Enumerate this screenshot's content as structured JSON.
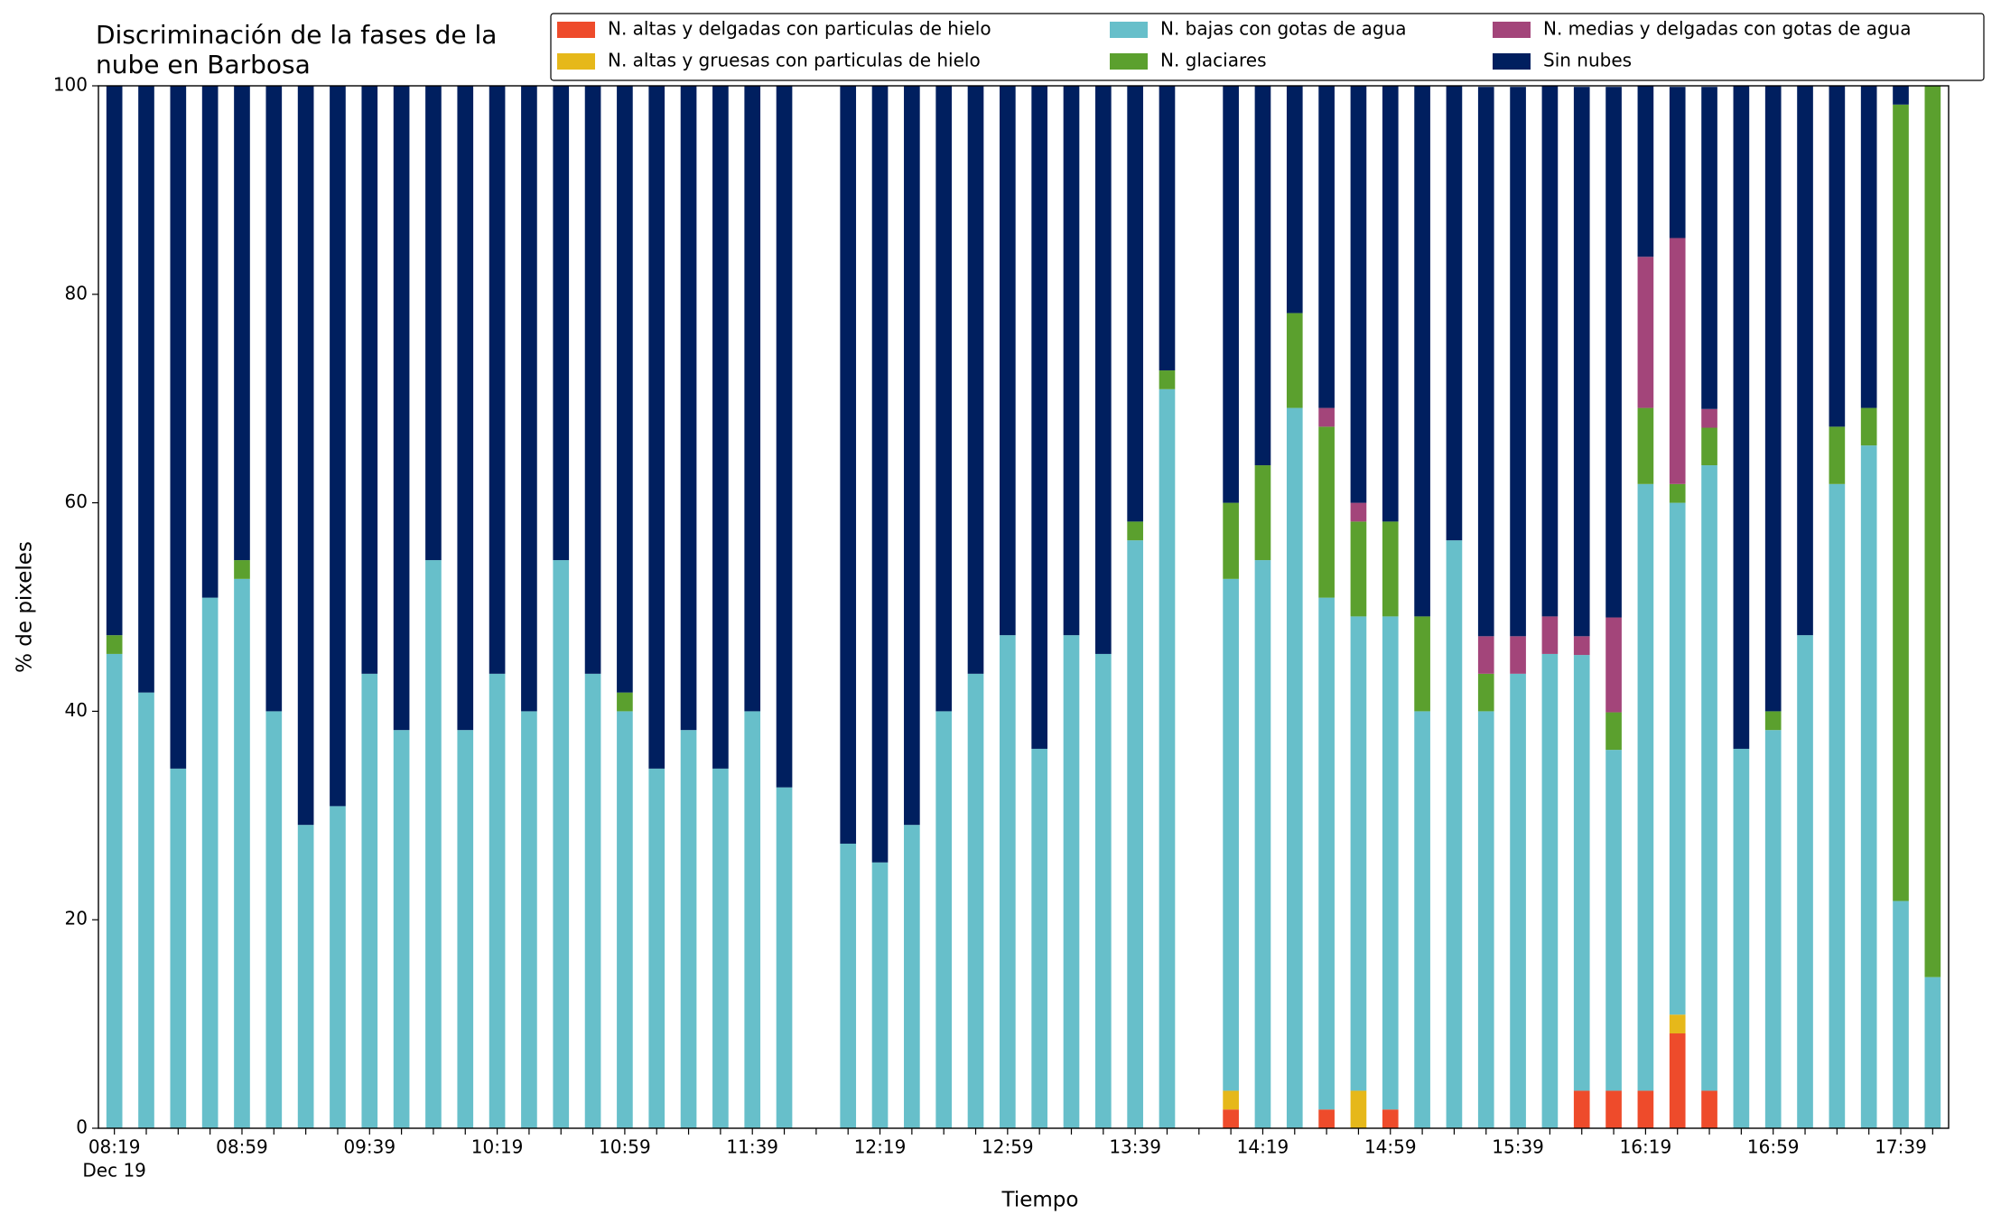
{
  "chart_data": {
    "type": "stacked_bar",
    "title": [
      "Discriminación de la fases de la",
      "nube en Barbosa"
    ],
    "x_label": "Tiempo",
    "y_label": "% de pixeles",
    "x_date_label": "Dec 19",
    "categories": [
      "08:19",
      null,
      null,
      null,
      "08:59",
      null,
      null,
      null,
      "09:39",
      null,
      null,
      null,
      "10:19",
      null,
      null,
      null,
      "10:59",
      null,
      null,
      null,
      "11:39",
      null,
      null,
      null,
      "12:19",
      null,
      null,
      null,
      "12:59",
      null,
      null,
      null,
      "13:39",
      null,
      null,
      null,
      "14:19",
      null,
      null,
      null,
      "14:59",
      null,
      null,
      null,
      "15:39",
      null,
      null,
      null,
      "16:19",
      null,
      null,
      null,
      "16:59",
      null,
      null,
      null,
      "17:39",
      null
    ],
    "ylim": [
      0,
      100
    ],
    "yticks": [
      0,
      20,
      40,
      60,
      80,
      100
    ],
    "series": [
      {
        "name": "N. altas y delgadas con particulas de hielo",
        "color": "#ee4b2b",
        "values": [
          0,
          0,
          0,
          0,
          0,
          0,
          0,
          0,
          0,
          0,
          0,
          0,
          0,
          0,
          0,
          0,
          0,
          0,
          0,
          0,
          0,
          0,
          null,
          0,
          0,
          0,
          0,
          0,
          0,
          0,
          0,
          0,
          0,
          0,
          null,
          1.8,
          0,
          0,
          1.8,
          0,
          1.8,
          0,
          0,
          0,
          0,
          0,
          3.6,
          3.6,
          3.6,
          9.1,
          3.6,
          0,
          0,
          0,
          0,
          0,
          0,
          0
        ]
      },
      {
        "name": "N. altas y gruesas con particulas de hielo",
        "color": "#e6b81a",
        "values": [
          0,
          0,
          0,
          0,
          0,
          0,
          0,
          0,
          0,
          0,
          0,
          0,
          0,
          0,
          0,
          0,
          0,
          0,
          0,
          0,
          0,
          0,
          null,
          0,
          0,
          0,
          0,
          0,
          0,
          0,
          0,
          0,
          0,
          0,
          null,
          1.8,
          0,
          0,
          0,
          3.6,
          0,
          0,
          0,
          0,
          0,
          0,
          0,
          0,
          0,
          1.8,
          0,
          0,
          0,
          0,
          0,
          0,
          0,
          0
        ]
      },
      {
        "name": "N. bajas con gotas de agua",
        "color": "#67bfca",
        "values": [
          45.5,
          41.8,
          34.5,
          50.9,
          52.7,
          40.0,
          29.1,
          30.9,
          43.6,
          38.2,
          54.5,
          38.2,
          43.6,
          40.0,
          54.5,
          43.6,
          40.0,
          34.5,
          38.2,
          34.5,
          40.0,
          32.7,
          null,
          27.3,
          25.5,
          29.1,
          40.0,
          43.6,
          47.3,
          36.4,
          47.3,
          45.5,
          56.4,
          70.9,
          null,
          49.1,
          54.5,
          69.1,
          49.1,
          45.5,
          47.3,
          40.0,
          56.4,
          40.0,
          43.6,
          45.5,
          41.8,
          32.7,
          58.2,
          49.1,
          60.0,
          36.4,
          38.2,
          47.3,
          61.8,
          65.5,
          21.8,
          14.5
        ]
      },
      {
        "name": "N. glaciares",
        "color": "#5ba02e",
        "values": [
          1.8,
          0,
          0,
          0,
          1.8,
          0,
          0,
          0,
          0,
          0,
          0,
          0,
          0,
          0,
          0,
          0,
          1.8,
          0,
          0,
          0,
          0,
          0,
          null,
          0,
          0,
          0,
          0,
          0,
          0,
          0,
          0,
          0,
          1.8,
          1.8,
          null,
          7.3,
          9.1,
          9.1,
          16.4,
          9.1,
          9.1,
          9.1,
          0,
          3.6,
          0,
          0,
          0,
          3.6,
          7.3,
          1.8,
          3.6,
          0,
          1.8,
          0,
          5.5,
          3.6,
          76.4,
          85.5
        ]
      },
      {
        "name": "N. medias y delgadas con gotas de agua",
        "color": "#a3457a",
        "values": [
          0,
          0,
          0,
          0,
          0,
          0,
          0,
          0,
          0,
          0,
          0,
          0,
          0,
          0,
          0,
          0,
          0,
          0,
          0,
          0,
          0,
          0,
          null,
          0,
          0,
          0,
          0,
          0,
          0,
          0,
          0,
          0,
          0,
          0,
          null,
          0,
          0,
          0,
          1.8,
          1.8,
          0,
          0,
          0,
          3.6,
          3.6,
          3.6,
          1.8,
          9.1,
          14.5,
          23.6,
          1.8,
          0,
          0,
          0,
          0,
          0,
          0,
          0
        ]
      },
      {
        "name": "Sin nubes",
        "color": "#001f5f",
        "values": [
          52.7,
          58.2,
          65.5,
          49.1,
          45.5,
          60.0,
          70.9,
          69.1,
          56.4,
          61.8,
          45.5,
          61.8,
          56.4,
          60.0,
          45.5,
          56.4,
          58.2,
          65.5,
          61.8,
          65.5,
          60.0,
          67.3,
          null,
          72.7,
          74.5,
          70.9,
          60.0,
          56.4,
          52.7,
          63.6,
          52.7,
          54.5,
          41.8,
          27.3,
          null,
          40.0,
          36.4,
          21.8,
          30.9,
          40.0,
          41.8,
          50.9,
          43.6,
          52.7,
          52.7,
          50.9,
          52.7,
          50.9,
          16.4,
          14.5,
          30.9,
          63.6,
          60.0,
          52.7,
          32.7,
          30.9,
          1.8,
          0
        ]
      }
    ]
  }
}
